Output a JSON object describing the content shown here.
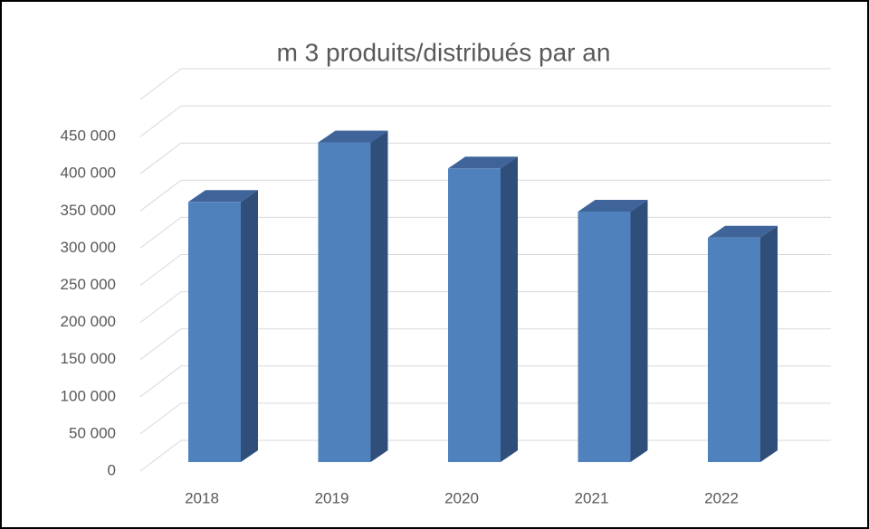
{
  "chart_data": {
    "type": "bar3d",
    "title": "m 3 produits/distribués par an",
    "categories": [
      "2018",
      "2019",
      "2020",
      "2021",
      "2022"
    ],
    "values": [
      350000,
      430000,
      395000,
      337000,
      302000
    ],
    "color": "#4f81bd",
    "ylim": [
      0,
      500000
    ],
    "yticks": [
      0,
      {
        "value": 50000,
        "label": "50 000"
      },
      {
        "value": 100000,
        "label": "100 000"
      },
      {
        "value": 150000,
        "label": "150 000"
      },
      {
        "value": 200000,
        "label": "200 000"
      },
      {
        "value": 250000,
        "label": "250 000"
      },
      {
        "value": 300000,
        "label": "300 000"
      },
      {
        "value": 350000,
        "label": "350 000"
      },
      {
        "value": 400000,
        "label": "400 000"
      },
      {
        "value": 450000,
        "label": "450 000"
      }
    ],
    "grid": true
  }
}
